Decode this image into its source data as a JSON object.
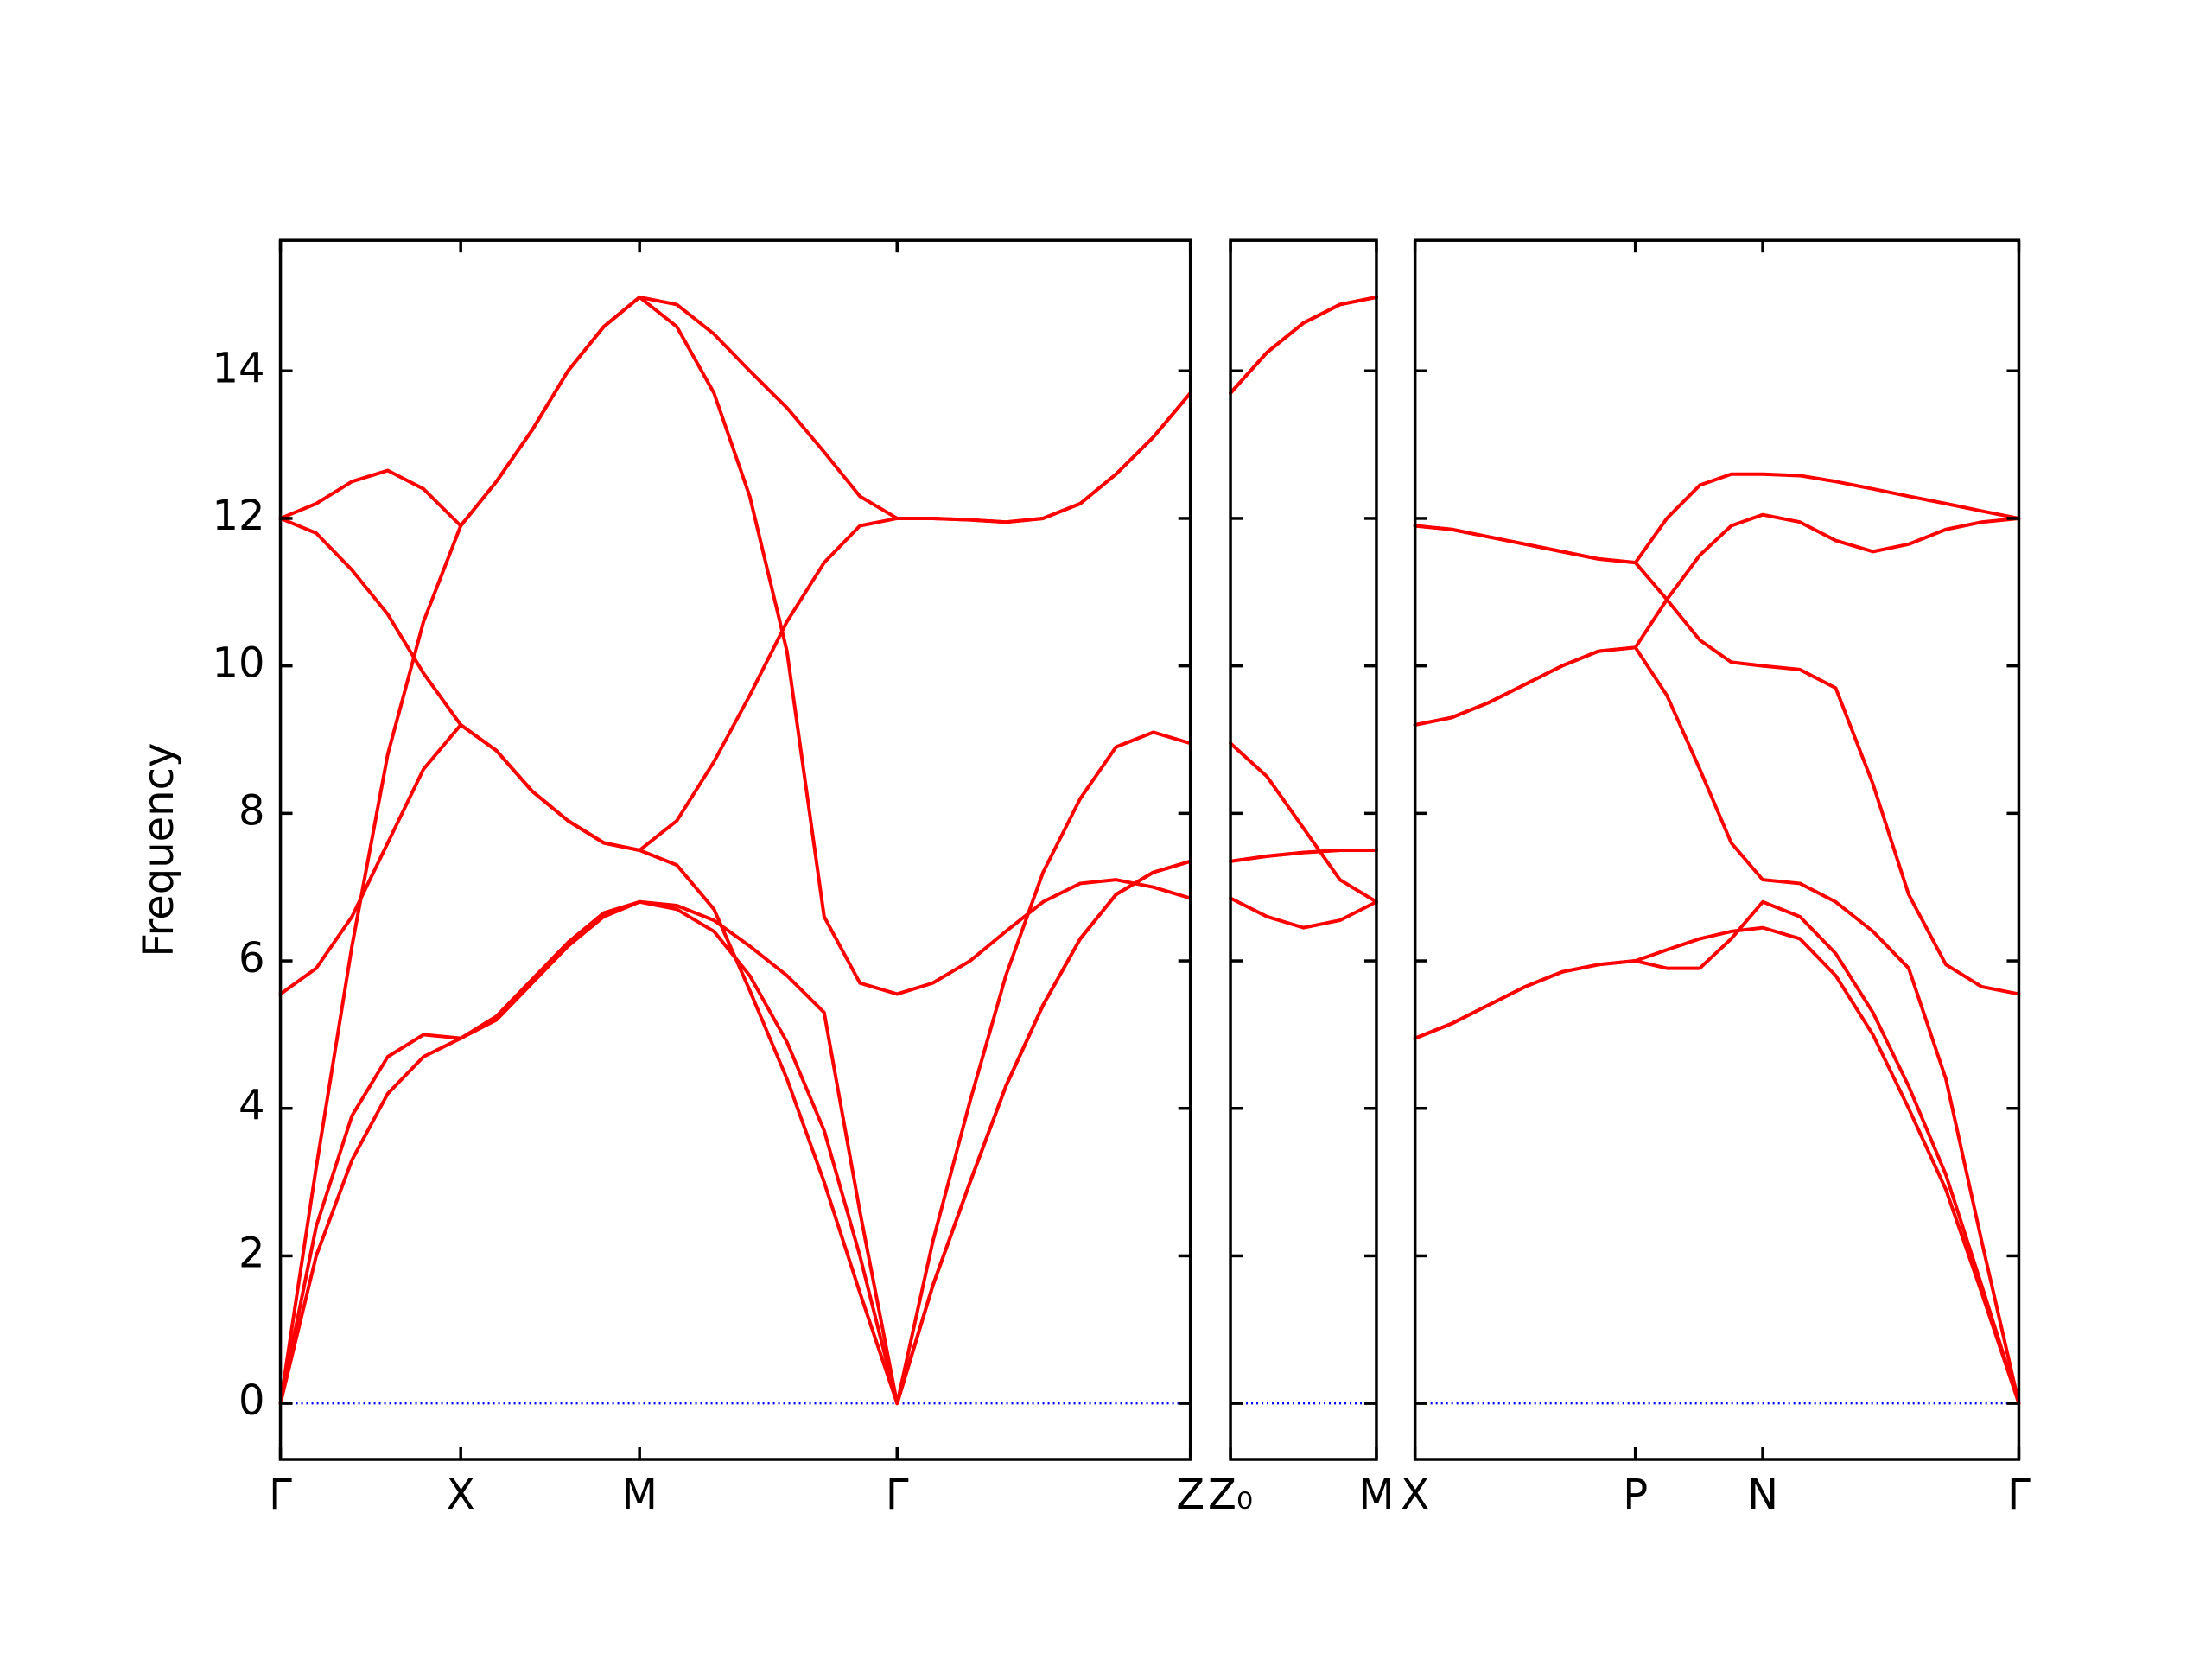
{
  "chart_data": [
    {
      "type": "line",
      "y_label": "Frequency",
      "ytick_labels": true,
      "x": [
        0,
        0.25,
        0.5,
        0.75,
        1.0,
        1.26,
        1.51,
        1.76,
        2.01,
        2.26,
        2.51,
        2.77,
        3.03,
        3.28,
        3.54,
        3.8,
        4.05,
        4.31,
        4.56,
        4.82,
        5.07,
        5.33,
        5.59,
        5.84,
        6.1,
        6.36
      ],
      "xlim": [
        0,
        6.36
      ],
      "ylim": [
        -0.76,
        15.77
      ],
      "xticks": [
        {
          "value": 0,
          "label": "Γ"
        },
        {
          "value": 1.26,
          "label": "X"
        },
        {
          "value": 2.51,
          "label": "M"
        },
        {
          "value": 4.31,
          "label": "Γ"
        },
        {
          "value": 6.36,
          "label": "Z"
        }
      ],
      "yticks": [
        0,
        2,
        4,
        6,
        8,
        10,
        12,
        14
      ],
      "zero_line": {
        "value": 0,
        "color": "#0000ff"
      },
      "series": [
        {
          "color": "#ff0000",
          "values": [
            0,
            2.0,
            3.3,
            4.2,
            4.7,
            4.95,
            5.2,
            5.7,
            6.2,
            6.6,
            6.8,
            6.7,
            6.4,
            5.8,
            4.9,
            3.7,
            2.0,
            0,
            1.6,
            3.0,
            4.3,
            5.4,
            6.3,
            6.9,
            7.2,
            7.35
          ]
        },
        {
          "color": "#ff0000",
          "values": [
            0,
            2.4,
            3.9,
            4.7,
            5.0,
            4.95,
            5.25,
            5.75,
            6.25,
            6.65,
            6.8,
            6.75,
            6.55,
            6.2,
            5.8,
            5.3,
            2.6,
            0,
            1.6,
            3.0,
            4.3,
            5.4,
            6.3,
            6.9,
            7.2,
            7.35
          ]
        },
        {
          "color": "#ff0000",
          "values": [
            0,
            3.2,
            6.2,
            8.8,
            10.6,
            11.9,
            12.5,
            13.2,
            14.0,
            14.6,
            15.0,
            14.6,
            13.7,
            12.3,
            10.2,
            6.6,
            5.7,
            5.55,
            5.7,
            6.0,
            6.4,
            6.8,
            7.05,
            7.1,
            7.0,
            6.85
          ]
        },
        {
          "color": "#ff0000",
          "values": [
            5.55,
            5.9,
            6.6,
            7.6,
            8.6,
            9.2,
            8.85,
            8.3,
            7.9,
            7.6,
            7.5,
            7.3,
            6.7,
            5.6,
            4.4,
            3.0,
            1.5,
            0,
            2.2,
            4.1,
            5.8,
            7.2,
            8.2,
            8.9,
            9.1,
            8.95
          ]
        },
        {
          "color": "#ff0000",
          "values": [
            12.0,
            11.8,
            11.3,
            10.7,
            9.9,
            9.2,
            8.85,
            8.3,
            7.9,
            7.6,
            7.5,
            7.9,
            8.7,
            9.6,
            10.6,
            11.4,
            11.9,
            12.0,
            12.0,
            11.98,
            11.95,
            12.0,
            12.2,
            12.6,
            13.1,
            13.7
          ]
        },
        {
          "color": "#ff0000",
          "values": [
            12.0,
            12.2,
            12.5,
            12.65,
            12.4,
            11.9,
            12.5,
            13.2,
            14.0,
            14.6,
            15.0,
            14.9,
            14.5,
            14.0,
            13.5,
            12.9,
            12.3,
            12.0,
            12.0,
            11.98,
            11.95,
            12.0,
            12.2,
            12.6,
            13.1,
            13.7
          ]
        }
      ]
    },
    {
      "type": "line",
      "ytick_labels": false,
      "x": [
        0,
        0.255,
        0.51,
        0.765,
        1.02
      ],
      "xlim": [
        0,
        1.02
      ],
      "ylim": [
        -0.76,
        15.77
      ],
      "xticks": [
        {
          "value": 0,
          "label": "Z₀"
        },
        {
          "value": 1.02,
          "label": "M"
        }
      ],
      "yticks": [
        0,
        2,
        4,
        6,
        8,
        10,
        12,
        14
      ],
      "zero_line": {
        "value": 0,
        "color": "#0000ff"
      },
      "series": [
        {
          "color": "#ff0000",
          "values": [
            7.35,
            7.42,
            7.47,
            7.5,
            7.5
          ]
        },
        {
          "color": "#ff0000",
          "values": [
            7.35,
            7.42,
            7.47,
            7.5,
            7.5
          ]
        },
        {
          "color": "#ff0000",
          "values": [
            6.85,
            6.6,
            6.45,
            6.55,
            6.8
          ]
        },
        {
          "color": "#ff0000",
          "values": [
            8.95,
            8.5,
            7.8,
            7.1,
            6.8
          ]
        },
        {
          "color": "#ff0000",
          "values": [
            13.7,
            14.25,
            14.65,
            14.9,
            15.0
          ]
        },
        {
          "color": "#ff0000",
          "values": [
            13.7,
            14.25,
            14.65,
            14.9,
            15.0
          ]
        }
      ]
    },
    {
      "type": "line",
      "ytick_labels": false,
      "x": [
        0,
        0.257,
        0.513,
        0.77,
        1.027,
        1.283,
        1.54,
        1.76,
        1.99,
        2.21,
        2.43,
        2.69,
        2.94,
        3.2,
        3.45,
        3.71,
        3.96,
        4.22
      ],
      "xlim": [
        0,
        4.22
      ],
      "ylim": [
        -0.76,
        15.77
      ],
      "xticks": [
        {
          "value": 0,
          "label": "X"
        },
        {
          "value": 1.54,
          "label": "P"
        },
        {
          "value": 2.43,
          "label": "N"
        },
        {
          "value": 4.22,
          "label": "Γ"
        }
      ],
      "yticks": [
        0,
        2,
        4,
        6,
        8,
        10,
        12,
        14
      ],
      "zero_line": {
        "value": 0,
        "color": "#0000ff"
      },
      "series": [
        {
          "color": "#ff0000",
          "values": [
            4.95,
            5.15,
            5.4,
            5.65,
            5.85,
            5.95,
            6.0,
            5.9,
            5.9,
            6.3,
            6.8,
            6.6,
            6.1,
            5.3,
            4.3,
            3.1,
            1.6,
            0
          ]
        },
        {
          "color": "#ff0000",
          "values": [
            4.95,
            5.15,
            5.4,
            5.65,
            5.85,
            5.95,
            6.0,
            6.15,
            6.3,
            6.4,
            6.45,
            6.3,
            5.8,
            5.0,
            4.0,
            2.9,
            1.5,
            0
          ]
        },
        {
          "color": "#ff0000",
          "values": [
            9.2,
            9.3,
            9.5,
            9.75,
            10.0,
            10.2,
            10.25,
            9.6,
            8.6,
            7.6,
            7.1,
            7.05,
            6.8,
            6.4,
            5.9,
            4.4,
            2.2,
            0
          ]
        },
        {
          "color": "#ff0000",
          "values": [
            9.2,
            9.3,
            9.5,
            9.75,
            10.0,
            10.2,
            10.25,
            10.9,
            11.5,
            11.9,
            12.05,
            11.95,
            11.7,
            11.55,
            11.65,
            11.85,
            11.95,
            12.0
          ]
        },
        {
          "color": "#ff0000",
          "values": [
            11.9,
            11.85,
            11.75,
            11.65,
            11.55,
            11.45,
            11.4,
            10.9,
            10.35,
            10.05,
            10.0,
            9.95,
            9.7,
            8.4,
            6.9,
            5.95,
            5.65,
            5.55
          ]
        },
        {
          "color": "#ff0000",
          "values": [
            11.9,
            11.85,
            11.75,
            11.65,
            11.55,
            11.45,
            11.4,
            12.0,
            12.45,
            12.6,
            12.6,
            12.58,
            12.5,
            12.4,
            12.3,
            12.2,
            12.1,
            12.0
          ]
        }
      ]
    }
  ]
}
